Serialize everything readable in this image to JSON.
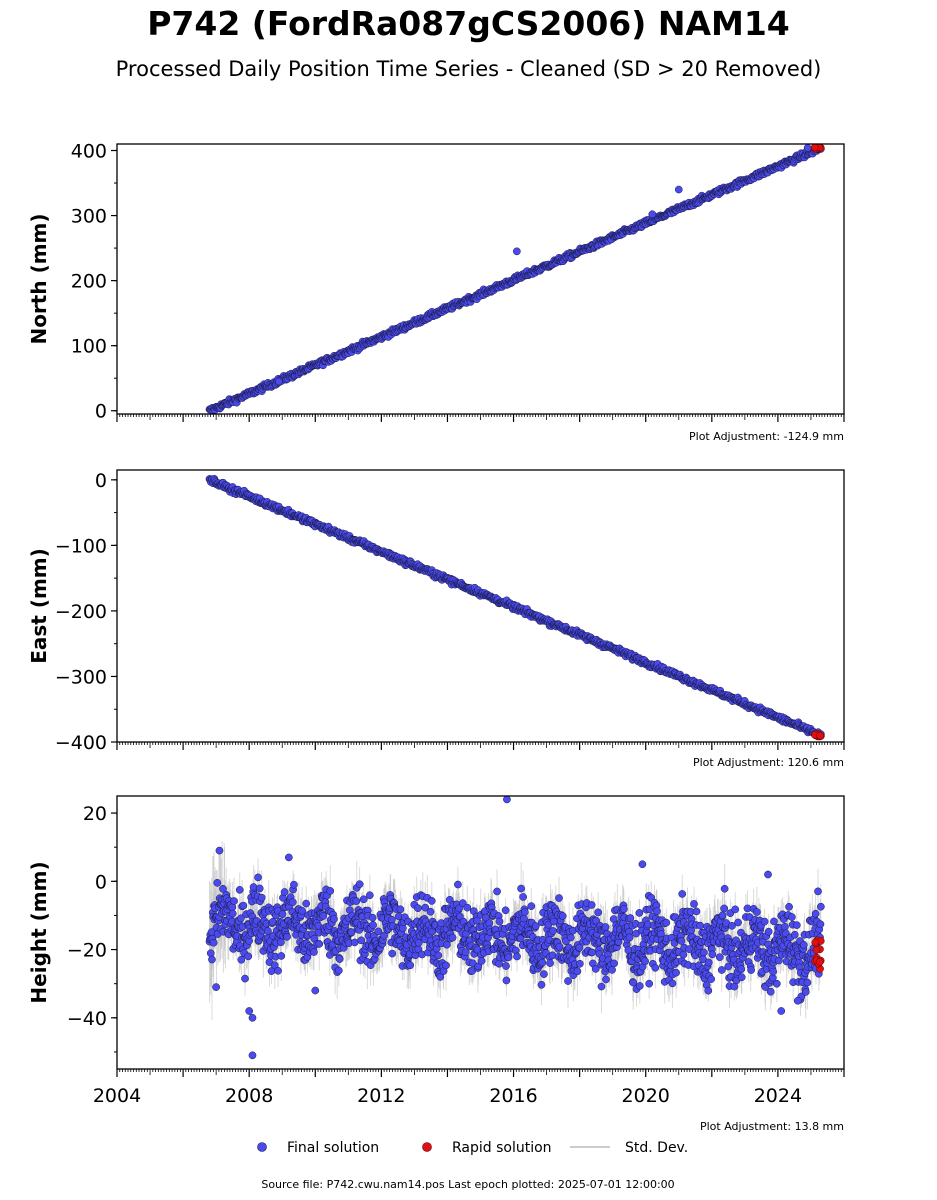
{
  "title": "P742 (FordRa087gCS2006) NAM14",
  "subtitle": "Processed Daily Position Time Series - Cleaned (SD > 20 Removed)",
  "source_text": "Source file: P742.cwu.nam14.pos  Last epoch plotted: 2025-07-01 12:00:00",
  "legend": {
    "final": "Final solution",
    "rapid": "Rapid solution",
    "std": "Std. Dev.",
    "placement": "bottom-center"
  },
  "colors": {
    "final": "#4a4aef",
    "final_edge": "#1a1a40",
    "rapid": "#e01010",
    "std": "#bbbbbb"
  },
  "chart_data": [
    {
      "type": "scatter",
      "name": "north",
      "ylabel": "North (mm)",
      "adjustment": "Plot Adjustment: -124.9 mm",
      "xlim": [
        2004,
        2026
      ],
      "ylim": [
        -5,
        410
      ],
      "yticks": [
        0,
        100,
        200,
        300,
        400
      ],
      "xticks": [],
      "start": [
        2006.8,
        0
      ],
      "end": [
        2025.3,
        404
      ],
      "noise": 3,
      "rapid_range": [
        2025.1,
        2025.5
      ],
      "outliers": [
        [
          2008.9,
          45
        ],
        [
          2016.1,
          245
        ],
        [
          2020.2,
          302
        ],
        [
          2021.0,
          340
        ],
        [
          2024.9,
          404
        ]
      ]
    },
    {
      "type": "scatter",
      "name": "east",
      "ylabel": "East (mm)",
      "adjustment": "Plot Adjustment: 120.6 mm",
      "xlim": [
        2004,
        2026
      ],
      "ylim": [
        -400,
        15
      ],
      "yticks": [
        0,
        -100,
        -200,
        -300,
        -400
      ],
      "xticks": [],
      "start": [
        2006.8,
        0
      ],
      "end": [
        2025.3,
        -390
      ],
      "noise": 3,
      "rapid_range": [
        2025.1,
        2025.5
      ],
      "outliers": []
    },
    {
      "type": "scatter",
      "name": "height",
      "ylabel": "Height (mm)",
      "adjustment": "Plot Adjustment: 13.8 mm",
      "xlim": [
        2004,
        2026
      ],
      "ylim": [
        -55,
        25
      ],
      "yticks": [
        20,
        0,
        -20,
        -40
      ],
      "xticks": [
        2004,
        2008,
        2012,
        2016,
        2020,
        2024
      ],
      "start": [
        2006.8,
        -12
      ],
      "end": [
        2025.3,
        -20
      ],
      "noise": 7,
      "rapid_range": [
        2025.1,
        2025.5
      ],
      "outliers": [
        [
          2007.0,
          -31
        ],
        [
          2007.1,
          9
        ],
        [
          2008.0,
          -38
        ],
        [
          2008.1,
          -40
        ],
        [
          2008.1,
          -51
        ],
        [
          2009.2,
          7
        ],
        [
          2010.0,
          -32
        ],
        [
          2015.8,
          24
        ],
        [
          2019.9,
          5
        ],
        [
          2023.7,
          2
        ],
        [
          2024.1,
          -38
        ],
        [
          2024.6,
          -35
        ]
      ]
    }
  ]
}
